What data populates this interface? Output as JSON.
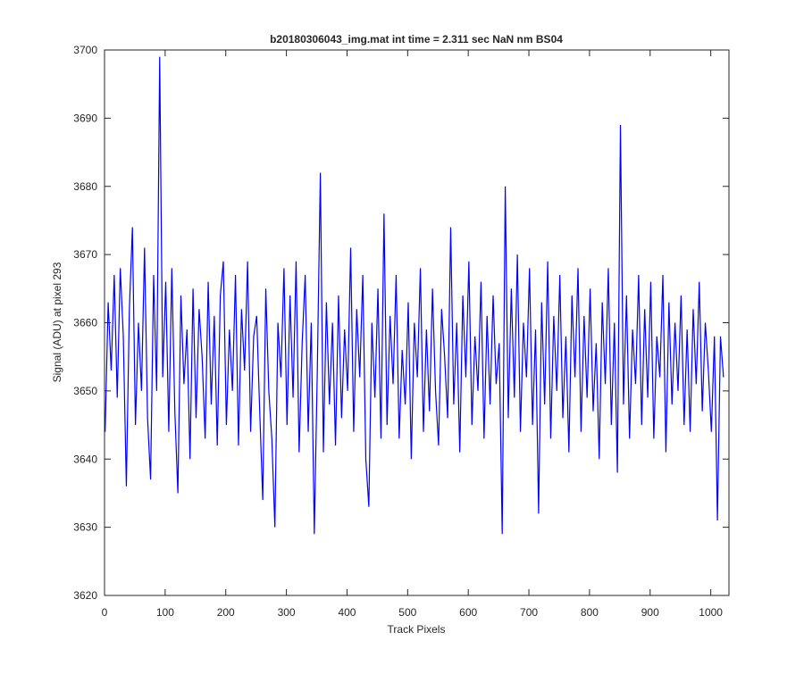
{
  "chart_data": {
    "type": "line",
    "title": "b20180306043_img.mat int time = 2.311 sec  NaN nm BS04",
    "x_label": "Track Pixels",
    "y_label": "Signal (ADU) at pixel 293",
    "xlim": [
      0,
      1030
    ],
    "ylim": [
      3620,
      3700
    ],
    "xticks": [
      0,
      100,
      200,
      300,
      400,
      500,
      600,
      700,
      800,
      900,
      1000
    ],
    "yticks": [
      3620,
      3630,
      3640,
      3650,
      3660,
      3670,
      3680,
      3690,
      3700
    ],
    "grid": false,
    "x": [
      1,
      6,
      11,
      16,
      21,
      26,
      31,
      36,
      41,
      46,
      51,
      56,
      61,
      66,
      71,
      76,
      81,
      86,
      91,
      96,
      101,
      106,
      111,
      116,
      121,
      126,
      131,
      136,
      141,
      146,
      151,
      156,
      161,
      166,
      171,
      176,
      181,
      186,
      191,
      196,
      201,
      206,
      211,
      216,
      221,
      226,
      231,
      236,
      241,
      246,
      251,
      256,
      261,
      266,
      271,
      276,
      281,
      286,
      291,
      296,
      301,
      306,
      311,
      316,
      321,
      326,
      331,
      336,
      341,
      346,
      351,
      356,
      361,
      366,
      371,
      376,
      381,
      386,
      391,
      396,
      401,
      406,
      411,
      416,
      421,
      426,
      431,
      436,
      441,
      446,
      451,
      456,
      461,
      466,
      471,
      476,
      481,
      486,
      491,
      496,
      501,
      506,
      511,
      516,
      521,
      526,
      531,
      536,
      541,
      546,
      551,
      556,
      561,
      566,
      571,
      576,
      581,
      586,
      591,
      596,
      601,
      606,
      611,
      616,
      621,
      626,
      631,
      636,
      641,
      646,
      651,
      656,
      661,
      666,
      671,
      676,
      681,
      686,
      691,
      696,
      701,
      706,
      711,
      716,
      721,
      726,
      731,
      736,
      741,
      746,
      751,
      756,
      761,
      766,
      771,
      776,
      781,
      786,
      791,
      796,
      801,
      806,
      811,
      816,
      821,
      826,
      831,
      836,
      841,
      846,
      851,
      856,
      861,
      866,
      871,
      876,
      881,
      886,
      891,
      896,
      901,
      906,
      911,
      916,
      921,
      926,
      931,
      936,
      941,
      946,
      951,
      956,
      961,
      966,
      971,
      976,
      981,
      986,
      991,
      996,
      1001,
      1006,
      1011,
      1016,
      1021
    ],
    "series": [
      {
        "color": "#0000ff",
        "values": [
          3644,
          3663,
          3653,
          3667,
          3649,
          3668,
          3658,
          3636,
          3662,
          3674,
          3645,
          3660,
          3650,
          3671,
          3646,
          3637,
          3667,
          3650,
          3699,
          3652,
          3666,
          3644,
          3668,
          3647,
          3635,
          3664,
          3651,
          3659,
          3640,
          3665,
          3646,
          3662,
          3655,
          3643,
          3666,
          3648,
          3661,
          3642,
          3664,
          3669,
          3645,
          3659,
          3650,
          3667,
          3642,
          3662,
          3653,
          3669,
          3644,
          3658,
          3661,
          3647,
          3634,
          3665,
          3650,
          3643,
          3630,
          3660,
          3652,
          3668,
          3645,
          3664,
          3649,
          3669,
          3641,
          3657,
          3667,
          3644,
          3660,
          3629,
          3653,
          3682,
          3641,
          3663,
          3648,
          3660,
          3642,
          3664,
          3646,
          3659,
          3650,
          3671,
          3644,
          3662,
          3652,
          3667,
          3640,
          3633,
          3660,
          3649,
          3665,
          3643,
          3676,
          3645,
          3661,
          3651,
          3667,
          3643,
          3656,
          3648,
          3663,
          3640,
          3660,
          3652,
          3668,
          3644,
          3659,
          3647,
          3665,
          3650,
          3642,
          3662,
          3655,
          3646,
          3674,
          3648,
          3660,
          3641,
          3664,
          3652,
          3669,
          3645,
          3658,
          3650,
          3666,
          3643,
          3661,
          3648,
          3664,
          3651,
          3657,
          3629,
          3680,
          3646,
          3665,
          3649,
          3670,
          3644,
          3660,
          3652,
          3668,
          3645,
          3659,
          3632,
          3663,
          3648,
          3669,
          3643,
          3661,
          3650,
          3667,
          3646,
          3658,
          3641,
          3664,
          3652,
          3668,
          3644,
          3661,
          3649,
          3665,
          3647,
          3657,
          3640,
          3663,
          3651,
          3668,
          3645,
          3660,
          3638,
          3689,
          3648,
          3664,
          3643,
          3659,
          3651,
          3667,
          3645,
          3662,
          3649,
          3666,
          3643,
          3658,
          3652,
          3667,
          3641,
          3663,
          3648,
          3660,
          3650,
          3664,
          3645,
          3659,
          3644,
          3662,
          3651,
          3666,
          3647,
          3660,
          3653,
          3644,
          3658,
          3631,
          3658,
          3652
        ]
      }
    ]
  }
}
